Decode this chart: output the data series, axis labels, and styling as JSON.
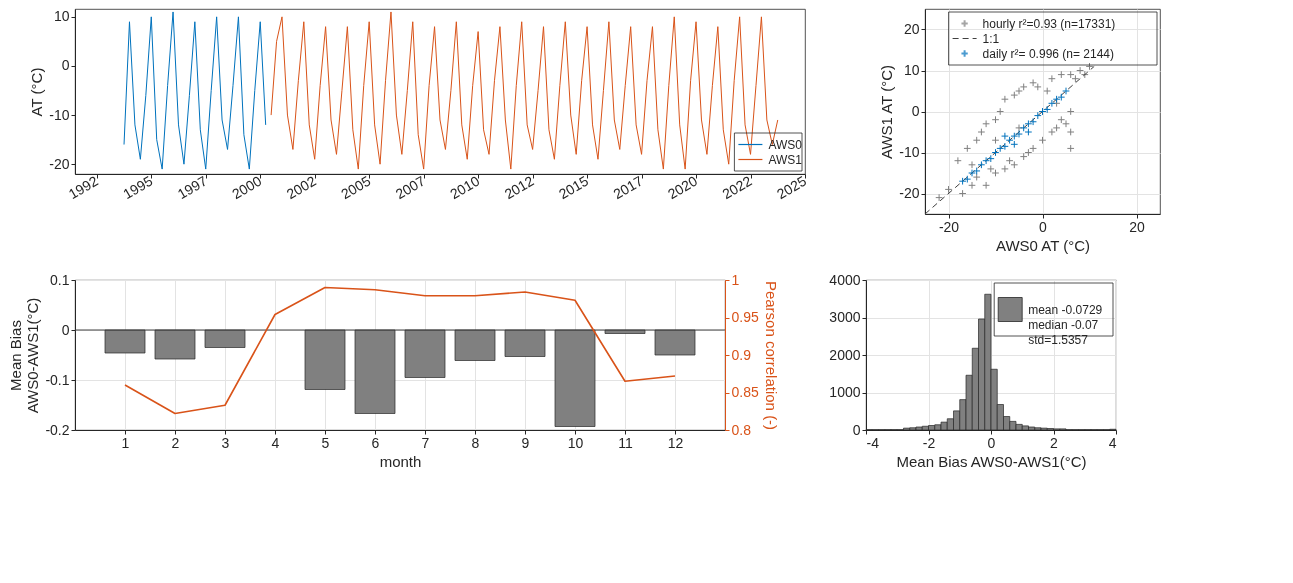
{
  "chart_data": [
    {
      "type": "line",
      "ylabel": "AT (°C)",
      "xlim": [
        1991.5,
        2025
      ],
      "ylim": [
        -22,
        11.6
      ],
      "xticks": [
        {
          "value": 1992.5,
          "label": "1992"
        },
        1995,
        {
          "value": 1997.5,
          "label": "1997"
        },
        2000,
        {
          "value": 2002.5,
          "label": "2002"
        },
        2005,
        {
          "value": 2007.5,
          "label": "2007"
        },
        2010,
        {
          "value": 2012.5,
          "label": "2012"
        },
        2015,
        {
          "value": 2017.5,
          "label": "2017"
        },
        2020,
        {
          "value": 2022.5,
          "label": "2022"
        },
        2025
      ],
      "yticks": [
        -20,
        -10,
        0,
        10
      ],
      "grid": false,
      "legend": "bottom right",
      "series": [
        {
          "name": "AWS0",
          "color": "#0072bd",
          "x": [
            1993.75,
            1994,
            1994.25,
            1994.5,
            1994.75,
            1995,
            1995.25,
            1995.5,
            1995.75,
            1996,
            1996.25,
            1996.5,
            1996.75,
            1997,
            1997.25,
            1997.5,
            1997.75,
            1998,
            1998.25,
            1998.5,
            1998.75,
            1999,
            1999.25,
            1999.5,
            1999.75,
            2000,
            2000.25
          ],
          "values": [
            -16,
            9,
            -12,
            -19,
            -6,
            10,
            -15,
            -21,
            -4,
            11,
            -12,
            -20,
            -6,
            9,
            -13,
            -21,
            -5,
            10,
            -11,
            -17,
            -4,
            10,
            -14,
            -21,
            -5,
            9,
            -12
          ]
        },
        {
          "name": "AWS1",
          "color": "#d95319",
          "x": [
            2000.5,
            2000.75,
            2001,
            2001.25,
            2001.5,
            2001.75,
            2002,
            2002.25,
            2002.5,
            2002.75,
            2003,
            2003.25,
            2003.5,
            2003.75,
            2004,
            2004.25,
            2004.5,
            2004.75,
            2005,
            2005.25,
            2005.5,
            2005.75,
            2006,
            2006.25,
            2006.5,
            2006.75,
            2007,
            2007.25,
            2007.5,
            2007.75,
            2008,
            2008.25,
            2008.5,
            2008.75,
            2009,
            2009.25,
            2009.5,
            2009.75,
            2010,
            2010.25,
            2010.5,
            2010.75,
            2011,
            2011.25,
            2011.5,
            2011.75,
            2012,
            2012.25,
            2012.5,
            2012.75,
            2013,
            2013.25,
            2013.5,
            2013.75,
            2014,
            2014.25,
            2014.5,
            2014.75,
            2015,
            2015.25,
            2015.5,
            2015.75,
            2016,
            2016.25,
            2016.5,
            2016.75,
            2017,
            2017.25,
            2017.5,
            2017.75,
            2018,
            2018.25,
            2018.5,
            2018.75,
            2019,
            2019.25,
            2019.5,
            2019.75,
            2020,
            2020.25,
            2020.5,
            2020.75,
            2021,
            2021.25,
            2021.5,
            2021.75,
            2022,
            2022.25,
            2022.5,
            2022.75,
            2023,
            2023.25,
            2023.5,
            2023.75
          ],
          "values": [
            -10,
            5,
            10,
            -10,
            -17,
            -3,
            9,
            -12,
            -19,
            -4,
            8,
            -11,
            -18,
            -5,
            8,
            -13,
            -21,
            -4,
            9,
            -12,
            -20,
            -3,
            11,
            -10,
            -18,
            -5,
            9,
            -14,
            -21,
            -4,
            8,
            -11,
            -17,
            -5,
            9,
            -12,
            -19,
            -4,
            7,
            -13,
            -18,
            -3,
            8,
            -11,
            -21,
            -4,
            9,
            -12,
            -17,
            -5,
            8,
            -13,
            -19,
            -4,
            9,
            -10,
            -18,
            -3,
            8,
            -12,
            -19,
            -5,
            9,
            -11,
            -17,
            -4,
            8,
            -12,
            -18,
            -3,
            8,
            -13,
            -21,
            -4,
            10,
            -12,
            -21,
            -3,
            9,
            -11,
            -18,
            -4,
            8,
            -13,
            -20,
            -3,
            10,
            -12,
            -18,
            -4,
            10,
            -11,
            -16,
            -11
          ]
        }
      ]
    },
    {
      "type": "scatter",
      "xlabel": "AWS0 AT (°C)",
      "ylabel": "AWS1 AT (°C)",
      "xlim": [
        -25,
        25
      ],
      "ylim": [
        -25,
        25
      ],
      "xticks": [
        -20,
        0,
        20
      ],
      "yticks": [
        -20,
        -10,
        0,
        10,
        20
      ],
      "grid": true,
      "legend": "top right",
      "marker": "cross",
      "series": [
        {
          "name": "hourly r²=0.93 (n=17331)",
          "color": "#808080",
          "x": [
            -22,
            -20,
            -18,
            -17,
            -16,
            -15,
            -15,
            -14,
            -14,
            -13,
            -12,
            -12,
            -11,
            -10,
            -10,
            -10,
            -9,
            -8,
            -8,
            -7,
            -6,
            -6,
            -5,
            -5,
            -4,
            -4,
            -3,
            -2,
            -2,
            -1,
            0,
            0,
            1,
            2,
            2,
            3,
            3,
            4,
            4,
            5,
            6,
            6,
            6,
            6,
            7,
            8,
            9,
            10
          ],
          "values": [
            -21,
            -19,
            -12,
            -20,
            -9,
            -18,
            -13,
            -7,
            -16,
            -5,
            -18,
            -3,
            -14,
            -2,
            -15,
            -7,
            0,
            -14,
            3,
            -12,
            4,
            -13,
            5,
            -4,
            -11,
            6,
            -10,
            7,
            -9,
            6,
            -7,
            0,
            5,
            -5,
            8,
            -4,
            2,
            9,
            -2,
            -3,
            9,
            0,
            -5,
            -9,
            8,
            10,
            9,
            11
          ]
        },
        {
          "name": "1:1",
          "type": "line",
          "line_style": "dashed",
          "marker": "none",
          "color": "#404040",
          "x": [
            -25,
            11
          ],
          "values": [
            -25,
            11
          ]
        },
        {
          "name": "daily r²=  0.996 (n= 2144)",
          "color": "#0072bd",
          "x": [
            -17,
            -16,
            -15,
            -14,
            -13,
            -12,
            -11,
            -10,
            -9,
            -8,
            -8,
            -7,
            -6,
            -6,
            -5,
            -4,
            -3,
            -3,
            -2,
            -1,
            0,
            1,
            2,
            3,
            4,
            5
          ],
          "values": [
            -17,
            -16.5,
            -15,
            -14.5,
            -13,
            -12,
            -11.5,
            -10,
            -9,
            -8.5,
            -6,
            -7,
            -6,
            -8,
            -5.5,
            -4,
            -3,
            -5,
            -2.5,
            -1,
            0,
            0.5,
            2,
            3,
            3.5,
            5
          ]
        }
      ]
    },
    {
      "type": "bar",
      "xlabel": "month",
      "ylabel": "Mean Bias\nAWS0-AWS1(°C)",
      "y2label": "Pearson correlation (-)",
      "x": [
        1,
        2,
        3,
        4,
        5,
        6,
        7,
        8,
        9,
        10,
        11,
        12
      ],
      "xlim": [
        0,
        13
      ],
      "xticks": [
        1,
        2,
        3,
        4,
        5,
        6,
        7,
        8,
        9,
        10,
        11,
        12
      ],
      "ylim": [
        -0.2,
        0.1
      ],
      "yticks": [
        -0.2,
        -0.1,
        0,
        0.1
      ],
      "y2lim": [
        0.8,
        1
      ],
      "y2ticks": [
        0.8,
        0.85,
        0.9,
        0.95,
        1
      ],
      "grid": true,
      "ref_lines": [
        {
          "axis": "y",
          "value": 0,
          "color": "#404040"
        }
      ],
      "series": [
        {
          "color": "#808080",
          "values": [
            -0.046,
            -0.058,
            -0.035,
            null,
            -0.119,
            -0.167,
            -0.095,
            -0.061,
            -0.053,
            -0.193,
            -0.007,
            -0.05
          ]
        },
        {
          "type": "line",
          "axis": "y2",
          "color": "#d95319",
          "values": [
            0.86,
            0.822,
            0.833,
            0.954,
            0.99,
            0.987,
            0.979,
            0.979,
            0.984,
            0.973,
            0.865,
            0.872
          ]
        }
      ]
    },
    {
      "type": "histogram",
      "xlabel": "Mean Bias  AWS0-AWS1(°C)",
      "xlim": [
        -4,
        4
      ],
      "xticks": [
        -4,
        -2,
        0,
        2,
        4
      ],
      "ylim": [
        0,
        4000
      ],
      "yticks": [
        0,
        1000,
        2000,
        3000,
        4000
      ],
      "grid": true,
      "legend": "top right",
      "bins": [
        -4,
        -3.8,
        -3.6,
        -3.4,
        -3.2,
        -3,
        -2.8,
        -2.6,
        -2.4,
        -2.2,
        -2,
        -1.8,
        -1.6,
        -1.4,
        -1.2,
        -1,
        -0.8,
        -0.6,
        -0.4,
        -0.2,
        0,
        0.2,
        0.4,
        0.6,
        0.8,
        1,
        1.2,
        1.4,
        1.6,
        1.8,
        2,
        2.2,
        2.4,
        2.6,
        2.8,
        3,
        3.2,
        3.4,
        3.6,
        3.8,
        4
      ],
      "series": [
        {
          "name": "mean -0.0729\nmedian -0.07\nstd=1.5357",
          "color": "#808080",
          "values": [
            10,
            10,
            10,
            10,
            10,
            10,
            50,
            60,
            80,
            100,
            120,
            140,
            210,
            300,
            510,
            810,
            1460,
            2180,
            2960,
            3620,
            1620,
            680,
            360,
            230,
            150,
            110,
            80,
            60,
            50,
            40,
            30,
            30,
            10,
            10,
            10,
            10,
            10,
            10,
            10,
            20
          ]
        }
      ]
    }
  ]
}
